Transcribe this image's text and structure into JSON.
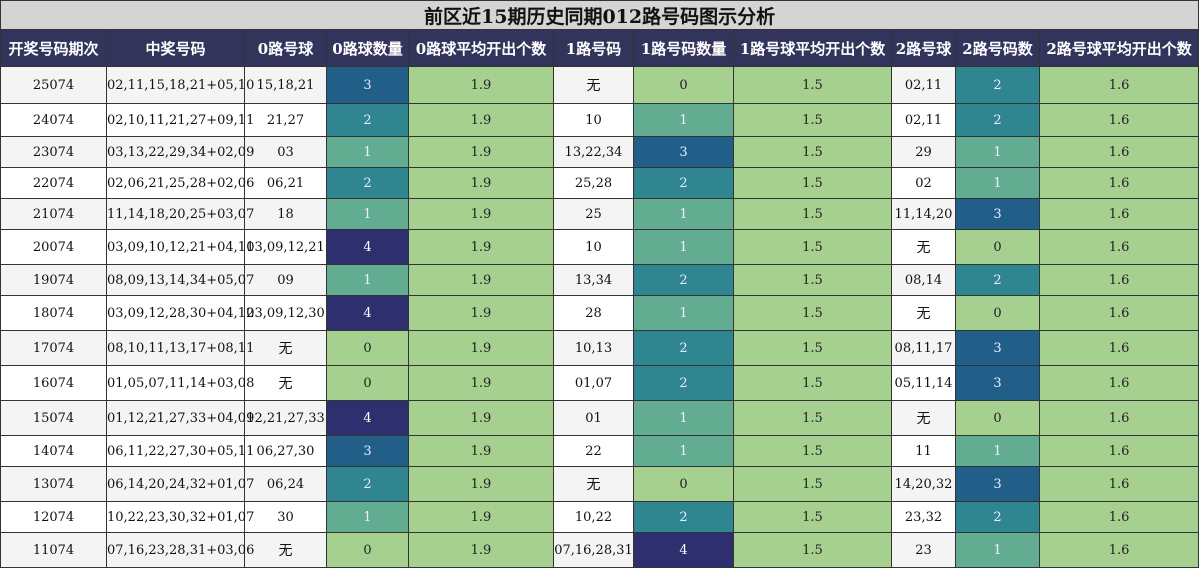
{
  "title": "前区近15期历史同期012路号码图示分析",
  "headers": [
    "开奖号码期次",
    "中奖号码",
    "0路号球",
    "0路球数量",
    "0路球平均开出个数",
    "1路号码",
    "1路号码数量",
    "1路号球平均开出个数",
    "2路号球",
    "2路号码数",
    "2路号球平均开出个数"
  ],
  "colors": {
    "title_bg": "#d4d4d4",
    "header_bg": "#33345c",
    "count_0": "#a5d08f",
    "count_1": "#62ad92",
    "count_2": "#2f8690",
    "count_3": "#215f89",
    "count_4": "#2e2f6e",
    "average_bg": "#a5d08f"
  },
  "rows": [
    {
      "period": "25074",
      "numbers": "02,11,15,18,21+05,10",
      "r0": "15,18,21",
      "r0_count": "3",
      "r0_avg": "1.9",
      "r1": "无",
      "r1_count": "0",
      "r1_avg": "1.5",
      "r2": "02,11",
      "r2_count": "2",
      "r2_avg": "1.6"
    },
    {
      "period": "24074",
      "numbers": "02,10,11,21,27+09,11",
      "r0": "21,27",
      "r0_count": "2",
      "r0_avg": "1.9",
      "r1": "10",
      "r1_count": "1",
      "r1_avg": "1.5",
      "r2": "02,11",
      "r2_count": "2",
      "r2_avg": "1.6"
    },
    {
      "period": "23074",
      "numbers": "03,13,22,29,34+02,09",
      "r0": "03",
      "r0_count": "1",
      "r0_avg": "1.9",
      "r1": "13,22,34",
      "r1_count": "3",
      "r1_avg": "1.5",
      "r2": "29",
      "r2_count": "1",
      "r2_avg": "1.6"
    },
    {
      "period": "22074",
      "numbers": "02,06,21,25,28+02,06",
      "r0": "06,21",
      "r0_count": "2",
      "r0_avg": "1.9",
      "r1": "25,28",
      "r1_count": "2",
      "r1_avg": "1.5",
      "r2": "02",
      "r2_count": "1",
      "r2_avg": "1.6"
    },
    {
      "period": "21074",
      "numbers": "11,14,18,20,25+03,07",
      "r0": "18",
      "r0_count": "1",
      "r0_avg": "1.9",
      "r1": "25",
      "r1_count": "1",
      "r1_avg": "1.5",
      "r2": "11,14,20",
      "r2_count": "3",
      "r2_avg": "1.6"
    },
    {
      "period": "20074",
      "numbers": "03,09,10,12,21+04,11",
      "r0": "03,09,12,21",
      "r0_count": "4",
      "r0_avg": "1.9",
      "r1": "10",
      "r1_count": "1",
      "r1_avg": "1.5",
      "r2": "无",
      "r2_count": "0",
      "r2_avg": "1.6"
    },
    {
      "period": "19074",
      "numbers": "08,09,13,14,34+05,07",
      "r0": "09",
      "r0_count": "1",
      "r0_avg": "1.9",
      "r1": "13,34",
      "r1_count": "2",
      "r1_avg": "1.5",
      "r2": "08,14",
      "r2_count": "2",
      "r2_avg": "1.6"
    },
    {
      "period": "18074",
      "numbers": "03,09,12,28,30+04,12",
      "r0": "03,09,12,30",
      "r0_count": "4",
      "r0_avg": "1.9",
      "r1": "28",
      "r1_count": "1",
      "r1_avg": "1.5",
      "r2": "无",
      "r2_count": "0",
      "r2_avg": "1.6"
    },
    {
      "period": "17074",
      "numbers": "08,10,11,13,17+08,11",
      "r0": "无",
      "r0_count": "0",
      "r0_avg": "1.9",
      "r1": "10,13",
      "r1_count": "2",
      "r1_avg": "1.5",
      "r2": "08,11,17",
      "r2_count": "3",
      "r2_avg": "1.6"
    },
    {
      "period": "16074",
      "numbers": "01,05,07,11,14+03,08",
      "r0": "无",
      "r0_count": "0",
      "r0_avg": "1.9",
      "r1": "01,07",
      "r1_count": "2",
      "r1_avg": "1.5",
      "r2": "05,11,14",
      "r2_count": "3",
      "r2_avg": "1.6"
    },
    {
      "period": "15074",
      "numbers": "01,12,21,27,33+04,09",
      "r0": "12,21,27,33",
      "r0_count": "4",
      "r0_avg": "1.9",
      "r1": "01",
      "r1_count": "1",
      "r1_avg": "1.5",
      "r2": "无",
      "r2_count": "0",
      "r2_avg": "1.6"
    },
    {
      "period": "14074",
      "numbers": "06,11,22,27,30+05,11",
      "r0": "06,27,30",
      "r0_count": "3",
      "r0_avg": "1.9",
      "r1": "22",
      "r1_count": "1",
      "r1_avg": "1.5",
      "r2": "11",
      "r2_count": "1",
      "r2_avg": "1.6"
    },
    {
      "period": "13074",
      "numbers": "06,14,20,24,32+01,07",
      "r0": "06,24",
      "r0_count": "2",
      "r0_avg": "1.9",
      "r1": "无",
      "r1_count": "0",
      "r1_avg": "1.5",
      "r2": "14,20,32",
      "r2_count": "3",
      "r2_avg": "1.6"
    },
    {
      "period": "12074",
      "numbers": "10,22,23,30,32+01,07",
      "r0": "30",
      "r0_count": "1",
      "r0_avg": "1.9",
      "r1": "10,22",
      "r1_count": "2",
      "r1_avg": "1.5",
      "r2": "23,32",
      "r2_count": "2",
      "r2_avg": "1.6"
    },
    {
      "period": "11074",
      "numbers": "07,16,23,28,31+03,06",
      "r0": "无",
      "r0_count": "0",
      "r0_avg": "1.9",
      "r1": "07,16,28,31",
      "r1_count": "4",
      "r1_avg": "1.5",
      "r2": "23",
      "r2_count": "1",
      "r2_avg": "1.6"
    }
  ]
}
